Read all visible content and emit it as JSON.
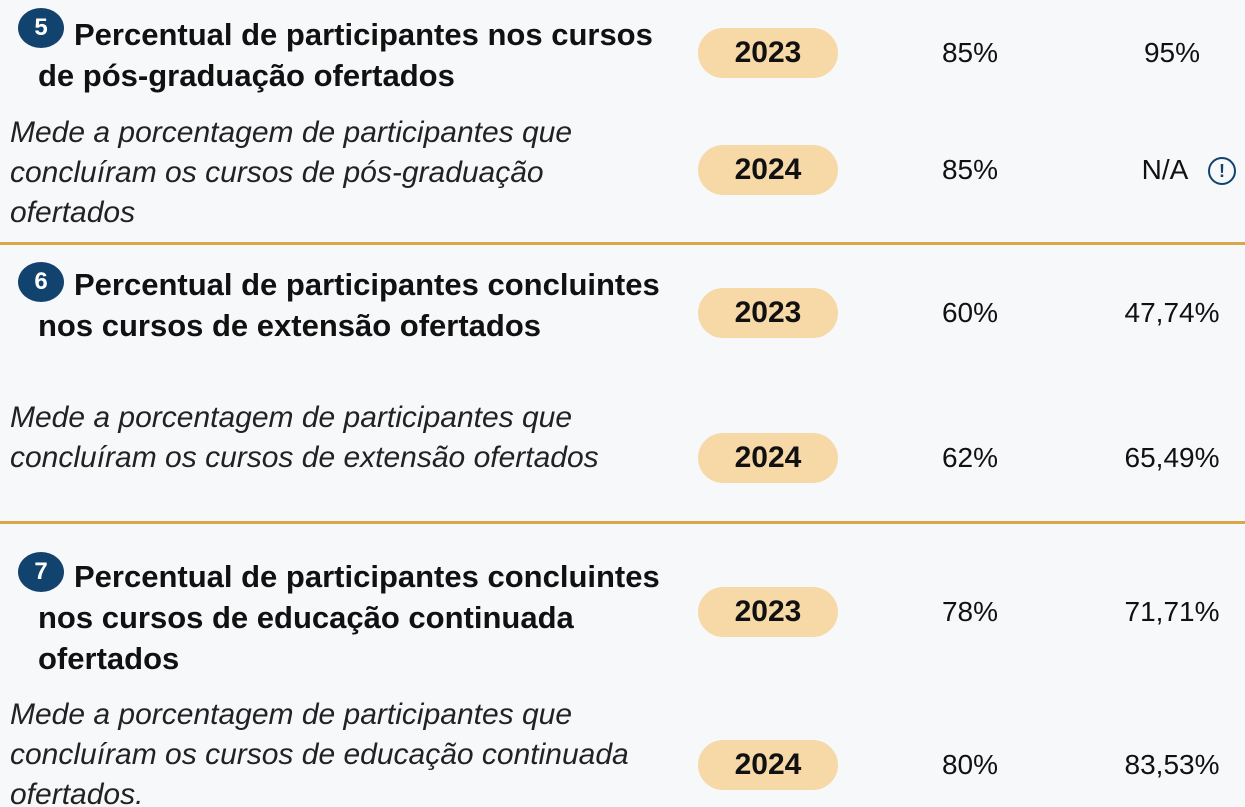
{
  "sections": [
    {
      "number": "5",
      "title": "Percentual de participantes nos cursos de pós-graduação ofertados",
      "description": "Mede a porcentagem de participantes que concluíram os cursos de pós-graduação ofertados",
      "rows": [
        {
          "year": "2023",
          "target": "85%",
          "result": "95%"
        },
        {
          "year": "2024",
          "target": "85%",
          "result": "N/A"
        }
      ]
    },
    {
      "number": "6",
      "title": "Percentual de participantes concluintes nos cursos de extensão ofertados",
      "description": "Mede a porcentagem de participantes que concluíram os cursos de extensão ofertados",
      "rows": [
        {
          "year": "2023",
          "target": "60%",
          "result": "47,74%"
        },
        {
          "year": "2024",
          "target": "62%",
          "result": "65,49%"
        }
      ]
    },
    {
      "number": "7",
      "title": "Percentual de participantes concluintes nos cursos de educação continuada ofertados",
      "description": "Mede a porcentagem de participantes que concluíram os cursos de educação continuada ofertados.",
      "rows": [
        {
          "year": "2023",
          "target": "78%",
          "result": "71,71%"
        },
        {
          "year": "2024",
          "target": "80%",
          "result": "83,53%"
        }
      ]
    }
  ]
}
